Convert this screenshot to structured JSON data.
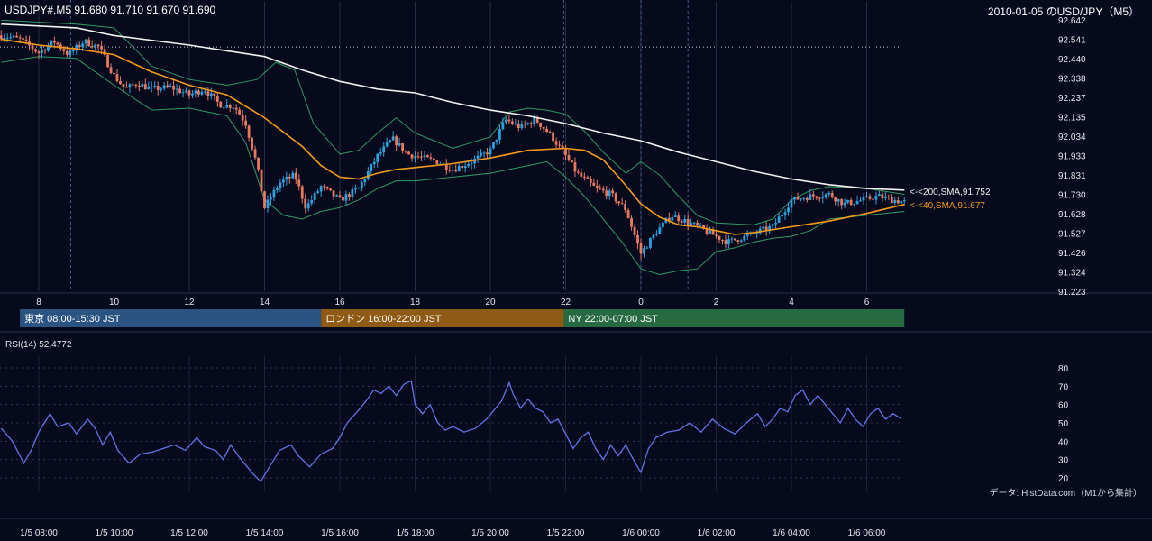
{
  "header": {
    "left": "USDJPY#,M5 91.680 91.710 91.670 91.690",
    "right": "2010-01-05 のUSD/JPY（M5）"
  },
  "colors": {
    "background": "#070a1c",
    "up_candle": "#29a3e0",
    "down_candle": "#e9795e",
    "sma200": "#f2f2f2",
    "sma40": "#f39a1c",
    "bollinger": "#2e9a62",
    "rsi": "#6373e6",
    "tokyo": "#2a5381",
    "london": "#8e5a14",
    "ny": "#276a42"
  },
  "sessions": [
    {
      "label": "東京 08:00-15:30 JST",
      "start_hour": 7.5,
      "end_hour": 15.5
    },
    {
      "label": "ロンドン 16:00-22:00 JST",
      "start_hour": 15.5,
      "end_hour": 21.95
    },
    {
      "label": "NY 22:00-07:00 JST",
      "start_hour": 21.95,
      "end_hour": 31.0
    }
  ],
  "labels": {
    "sma200": "<-<200,SMA,91.752",
    "sma40": "<-<40,SMA,91.677",
    "rsi_title": "RSI(14) 52.4772",
    "credit": "データ: HistData.com（M1から集計）"
  },
  "chart_data": [
    {
      "type": "candlestick",
      "title": "USDJPY#,M5",
      "y_ticks": [
        "92.642",
        "92.541",
        "92.440",
        "92.338",
        "92.237",
        "92.135",
        "92.034",
        "91.933",
        "91.831",
        "91.730",
        "91.628",
        "91.527",
        "91.426",
        "91.324",
        "91.223"
      ],
      "ylim": [
        91.223,
        92.642
      ],
      "hour_ticks": [
        "8",
        "10",
        "12",
        "14",
        "16",
        "18",
        "20",
        "22",
        "0",
        "2",
        "4",
        "6"
      ],
      "xlim_hours": [
        7.0,
        31.2
      ],
      "dotted_level": 92.5,
      "vertical_lines_hours": [
        8,
        10,
        12,
        14,
        16,
        18,
        20,
        22,
        24,
        26,
        28,
        30
      ],
      "dashed_lines_hours": [
        8.85,
        21.95,
        24,
        25.25
      ],
      "last_ohlc": {
        "open": 91.68,
        "high": 91.71,
        "low": 91.67,
        "close": 91.69
      },
      "close_path": [
        [
          7.0,
          92.56
        ],
        [
          7.5,
          92.54
        ],
        [
          8.0,
          92.47
        ],
        [
          8.4,
          92.53
        ],
        [
          8.8,
          92.46
        ],
        [
          9.2,
          92.53
        ],
        [
          9.6,
          92.5
        ],
        [
          10.0,
          92.35
        ],
        [
          10.3,
          92.28
        ],
        [
          10.6,
          92.31
        ],
        [
          11.0,
          92.28
        ],
        [
          11.5,
          92.29
        ],
        [
          12.0,
          92.25
        ],
        [
          12.4,
          92.28
        ],
        [
          12.8,
          92.2
        ],
        [
          13.2,
          92.19
        ],
        [
          13.5,
          92.1
        ],
        [
          13.8,
          91.88
        ],
        [
          14.0,
          91.66
        ],
        [
          14.4,
          91.79
        ],
        [
          14.8,
          91.83
        ],
        [
          15.1,
          91.66
        ],
        [
          15.5,
          91.77
        ],
        [
          16.0,
          91.7
        ],
        [
          16.5,
          91.76
        ],
        [
          17.0,
          91.93
        ],
        [
          17.4,
          92.02
        ],
        [
          17.8,
          91.94
        ],
        [
          18.2,
          91.92
        ],
        [
          18.6,
          91.9
        ],
        [
          19.0,
          91.86
        ],
        [
          19.5,
          91.9
        ],
        [
          20.0,
          91.96
        ],
        [
          20.4,
          92.12
        ],
        [
          20.8,
          92.08
        ],
        [
          21.2,
          92.12
        ],
        [
          21.6,
          92.04
        ],
        [
          22.0,
          91.93
        ],
        [
          22.3,
          91.84
        ],
        [
          22.8,
          91.76
        ],
        [
          23.2,
          91.73
        ],
        [
          23.6,
          91.65
        ],
        [
          24.0,
          91.42
        ],
        [
          24.4,
          91.53
        ],
        [
          24.8,
          91.62
        ],
        [
          25.3,
          91.58
        ],
        [
          25.8,
          91.53
        ],
        [
          26.3,
          91.48
        ],
        [
          26.8,
          91.51
        ],
        [
          27.2,
          91.54
        ],
        [
          27.5,
          91.56
        ],
        [
          28.0,
          91.7
        ],
        [
          28.5,
          91.72
        ],
        [
          29.0,
          91.73
        ],
        [
          29.4,
          91.68
        ],
        [
          29.9,
          91.7
        ],
        [
          30.3,
          91.72
        ],
        [
          30.7,
          91.7
        ],
        [
          31.0,
          91.69
        ]
      ],
      "sma200": [
        [
          7.0,
          92.62
        ],
        [
          9.0,
          92.6
        ],
        [
          10.0,
          92.56
        ],
        [
          12.0,
          92.51
        ],
        [
          13.0,
          92.48
        ],
        [
          14.0,
          92.45
        ],
        [
          15.0,
          92.38
        ],
        [
          16.0,
          92.32
        ],
        [
          17.0,
          92.28
        ],
        [
          18.0,
          92.26
        ],
        [
          19.0,
          92.21
        ],
        [
          20.0,
          92.17
        ],
        [
          21.0,
          92.14
        ],
        [
          22.0,
          92.1
        ],
        [
          23.0,
          92.05
        ],
        [
          24.0,
          92.01
        ],
        [
          25.0,
          91.95
        ],
        [
          26.0,
          91.9
        ],
        [
          27.0,
          91.85
        ],
        [
          28.0,
          91.81
        ],
        [
          29.0,
          91.78
        ],
        [
          30.0,
          91.76
        ],
        [
          31.0,
          91.752
        ]
      ],
      "sma40": [
        [
          7.0,
          92.54
        ],
        [
          8.0,
          92.51
        ],
        [
          9.0,
          92.49
        ],
        [
          10.0,
          92.46
        ],
        [
          11.0,
          92.37
        ],
        [
          12.0,
          92.3
        ],
        [
          13.0,
          92.25
        ],
        [
          14.0,
          92.13
        ],
        [
          15.0,
          91.98
        ],
        [
          15.5,
          91.88
        ],
        [
          16.0,
          91.82
        ],
        [
          16.5,
          91.81
        ],
        [
          17.0,
          91.84
        ],
        [
          17.5,
          91.86
        ],
        [
          18.0,
          91.87
        ],
        [
          19.0,
          91.89
        ],
        [
          20.0,
          91.92
        ],
        [
          21.0,
          91.96
        ],
        [
          22.0,
          91.97
        ],
        [
          22.5,
          91.96
        ],
        [
          23.0,
          91.91
        ],
        [
          23.5,
          91.8
        ],
        [
          24.0,
          91.68
        ],
        [
          24.5,
          91.61
        ],
        [
          25.0,
          91.57
        ],
        [
          25.5,
          91.56
        ],
        [
          26.0,
          91.54
        ],
        [
          26.5,
          91.52
        ],
        [
          27.0,
          91.53
        ],
        [
          28.0,
          91.56
        ],
        [
          29.0,
          91.59
        ],
        [
          30.0,
          91.63
        ],
        [
          31.0,
          91.677
        ]
      ],
      "bb_upper": [
        [
          7.0,
          92.64
        ],
        [
          8.0,
          92.63
        ],
        [
          9.0,
          92.62
        ],
        [
          10.0,
          92.6
        ],
        [
          11.0,
          92.4
        ],
        [
          12.0,
          92.33
        ],
        [
          13.0,
          92.3
        ],
        [
          13.8,
          92.33
        ],
        [
          14.3,
          92.42
        ],
        [
          14.8,
          92.38
        ],
        [
          15.3,
          92.1
        ],
        [
          16.0,
          91.94
        ],
        [
          16.5,
          91.96
        ],
        [
          17.0,
          92.05
        ],
        [
          17.5,
          92.13
        ],
        [
          18.0,
          92.05
        ],
        [
          19.0,
          91.97
        ],
        [
          20.0,
          92.03
        ],
        [
          20.5,
          92.16
        ],
        [
          21.0,
          92.18
        ],
        [
          21.5,
          92.17
        ],
        [
          22.0,
          92.15
        ],
        [
          22.5,
          92.06
        ],
        [
          23.0,
          91.95
        ],
        [
          23.6,
          91.84
        ],
        [
          24.0,
          91.9
        ],
        [
          24.5,
          91.83
        ],
        [
          25.0,
          91.72
        ],
        [
          25.5,
          91.62
        ],
        [
          26.0,
          91.58
        ],
        [
          27.0,
          91.57
        ],
        [
          27.5,
          91.6
        ],
        [
          28.0,
          91.7
        ],
        [
          28.5,
          91.75
        ],
        [
          29.0,
          91.77
        ],
        [
          30.0,
          91.76
        ],
        [
          31.0,
          91.73
        ]
      ],
      "bb_lower": [
        [
          7.0,
          92.42
        ],
        [
          8.0,
          92.45
        ],
        [
          9.0,
          92.44
        ],
        [
          10.0,
          92.3
        ],
        [
          11.0,
          92.17
        ],
        [
          12.0,
          92.18
        ],
        [
          13.0,
          92.14
        ],
        [
          13.5,
          92.0
        ],
        [
          14.0,
          91.7
        ],
        [
          14.5,
          91.62
        ],
        [
          15.0,
          91.6
        ],
        [
          15.5,
          91.64
        ],
        [
          16.0,
          91.66
        ],
        [
          16.5,
          91.7
        ],
        [
          17.0,
          91.76
        ],
        [
          17.5,
          91.8
        ],
        [
          18.0,
          91.8
        ],
        [
          19.0,
          91.82
        ],
        [
          20.0,
          91.84
        ],
        [
          21.0,
          91.88
        ],
        [
          21.5,
          91.9
        ],
        [
          22.0,
          91.82
        ],
        [
          22.5,
          91.72
        ],
        [
          23.0,
          91.6
        ],
        [
          23.5,
          91.48
        ],
        [
          24.0,
          91.34
        ],
        [
          24.5,
          91.31
        ],
        [
          25.0,
          91.33
        ],
        [
          25.5,
          91.34
        ],
        [
          26.0,
          91.43
        ],
        [
          26.5,
          91.45
        ],
        [
          27.0,
          91.48
        ],
        [
          27.5,
          91.5
        ],
        [
          28.0,
          91.51
        ],
        [
          28.5,
          91.54
        ],
        [
          29.0,
          91.6
        ],
        [
          30.0,
          91.62
        ],
        [
          31.0,
          91.64
        ]
      ]
    },
    {
      "type": "line",
      "title": "RSI(14) 52.4772",
      "y_ticks": [
        "80",
        "70",
        "60",
        "50",
        "40",
        "30",
        "20"
      ],
      "ylim": [
        15,
        82
      ],
      "xlim_hours": [
        7.0,
        31.2
      ],
      "x_ticks": [
        {
          "label": "1/5 08:00",
          "hour": 8
        },
        {
          "label": "1/5 10:00",
          "hour": 10
        },
        {
          "label": "1/5 12:00",
          "hour": 12
        },
        {
          "label": "1/5 14:00",
          "hour": 14
        },
        {
          "label": "1/5 16:00",
          "hour": 16
        },
        {
          "label": "1/5 18:00",
          "hour": 18
        },
        {
          "label": "1/5 20:00",
          "hour": 20
        },
        {
          "label": "1/5 22:00",
          "hour": 22
        },
        {
          "label": "1/6 00:00",
          "hour": 24
        },
        {
          "label": "1/6 02:00",
          "hour": 26
        },
        {
          "label": "1/6 04:00",
          "hour": 28
        },
        {
          "label": "1/6 06:00",
          "hour": 30
        }
      ],
      "last_value": 52.4772,
      "values": [
        [
          7.0,
          47
        ],
        [
          7.3,
          40
        ],
        [
          7.6,
          28
        ],
        [
          7.8,
          35
        ],
        [
          8.0,
          45
        ],
        [
          8.3,
          55
        ],
        [
          8.5,
          48
        ],
        [
          8.8,
          50
        ],
        [
          9.0,
          44
        ],
        [
          9.3,
          52
        ],
        [
          9.5,
          47
        ],
        [
          9.7,
          38
        ],
        [
          9.9,
          45
        ],
        [
          10.1,
          35
        ],
        [
          10.4,
          28
        ],
        [
          10.7,
          33
        ],
        [
          11.0,
          34
        ],
        [
          11.3,
          36
        ],
        [
          11.6,
          38
        ],
        [
          11.9,
          35
        ],
        [
          12.2,
          42
        ],
        [
          12.4,
          37
        ],
        [
          12.7,
          35
        ],
        [
          12.9,
          30
        ],
        [
          13.1,
          38
        ],
        [
          13.3,
          32
        ],
        [
          13.5,
          27
        ],
        [
          13.7,
          22
        ],
        [
          13.9,
          18
        ],
        [
          14.1,
          25
        ],
        [
          14.4,
          35
        ],
        [
          14.7,
          38
        ],
        [
          14.9,
          32
        ],
        [
          15.2,
          26
        ],
        [
          15.5,
          33
        ],
        [
          15.8,
          36
        ],
        [
          16.0,
          42
        ],
        [
          16.2,
          50
        ],
        [
          16.5,
          57
        ],
        [
          16.7,
          62
        ],
        [
          16.9,
          68
        ],
        [
          17.1,
          66
        ],
        [
          17.3,
          70
        ],
        [
          17.5,
          65
        ],
        [
          17.7,
          71
        ],
        [
          17.9,
          73
        ],
        [
          18.0,
          60
        ],
        [
          18.2,
          55
        ],
        [
          18.4,
          60
        ],
        [
          18.6,
          50
        ],
        [
          18.8,
          46
        ],
        [
          19.0,
          48
        ],
        [
          19.3,
          45
        ],
        [
          19.6,
          47
        ],
        [
          19.9,
          52
        ],
        [
          20.1,
          57
        ],
        [
          20.3,
          62
        ],
        [
          20.5,
          72
        ],
        [
          20.6,
          66
        ],
        [
          20.8,
          58
        ],
        [
          21.0,
          63
        ],
        [
          21.2,
          58
        ],
        [
          21.4,
          56
        ],
        [
          21.6,
          50
        ],
        [
          21.8,
          52
        ],
        [
          22.0,
          44
        ],
        [
          22.2,
          36
        ],
        [
          22.4,
          42
        ],
        [
          22.6,
          45
        ],
        [
          22.8,
          36
        ],
        [
          23.0,
          30
        ],
        [
          23.2,
          38
        ],
        [
          23.4,
          32
        ],
        [
          23.6,
          38
        ],
        [
          23.8,
          30
        ],
        [
          24.0,
          23
        ],
        [
          24.2,
          36
        ],
        [
          24.4,
          42
        ],
        [
          24.7,
          45
        ],
        [
          25.0,
          46
        ],
        [
          25.3,
          50
        ],
        [
          25.6,
          45
        ],
        [
          25.9,
          52
        ],
        [
          26.2,
          47
        ],
        [
          26.5,
          44
        ],
        [
          26.8,
          50
        ],
        [
          27.1,
          55
        ],
        [
          27.3,
          48
        ],
        [
          27.5,
          52
        ],
        [
          27.7,
          58
        ],
        [
          27.9,
          56
        ],
        [
          28.1,
          65
        ],
        [
          28.3,
          68
        ],
        [
          28.5,
          60
        ],
        [
          28.7,
          65
        ],
        [
          28.9,
          60
        ],
        [
          29.1,
          55
        ],
        [
          29.3,
          50
        ],
        [
          29.5,
          58
        ],
        [
          29.7,
          52
        ],
        [
          29.9,
          48
        ],
        [
          30.1,
          55
        ],
        [
          30.3,
          58
        ],
        [
          30.5,
          52
        ],
        [
          30.7,
          55
        ],
        [
          30.9,
          52.5
        ]
      ]
    }
  ]
}
